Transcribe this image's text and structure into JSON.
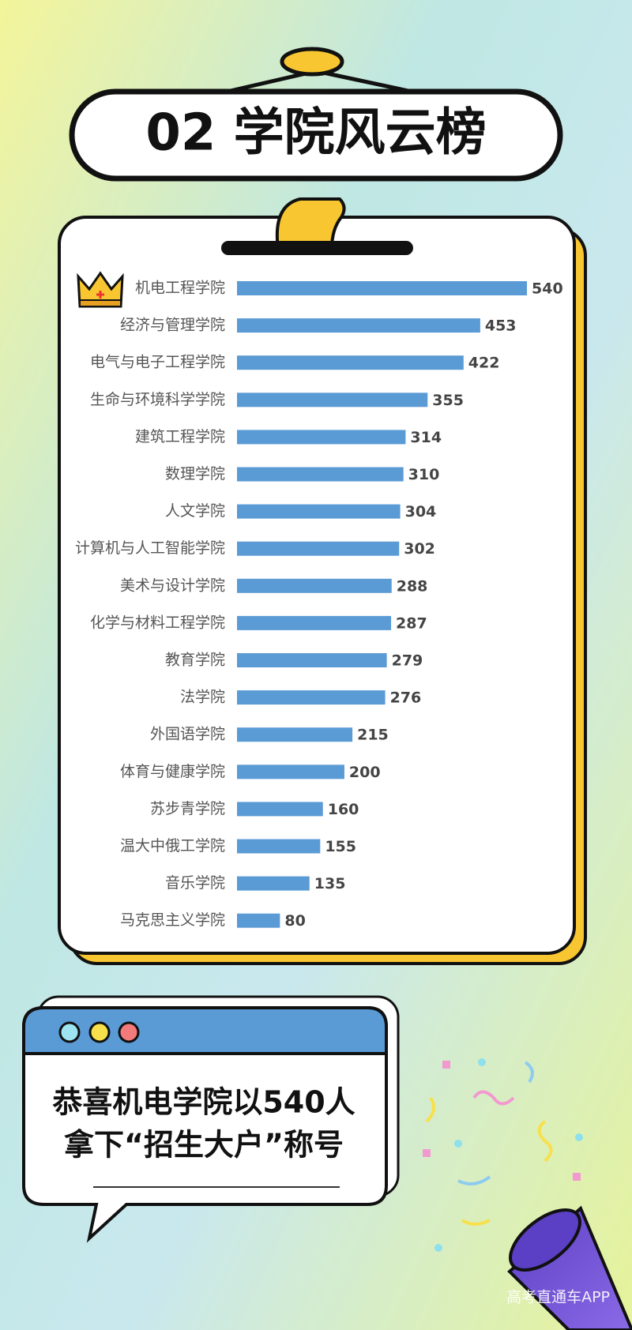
{
  "header": {
    "title": "02 学院风云榜"
  },
  "chart_data": {
    "type": "bar",
    "orientation": "horizontal",
    "color": "#5b9bd5",
    "categories": [
      "机电工程学院",
      "经济与管理学院",
      "电气与电子工程学院",
      "生命与环境科学学院",
      "建筑工程学院",
      "数理学院",
      "人文学院",
      "计算机与人工智能学院",
      "美术与设计学院",
      "化学与材料工程学院",
      "教育学院",
      "法学院",
      "外国语学院",
      "体育与健康学院",
      "苏步青学院",
      "温大中俄工学院",
      "音乐学院",
      "马克思主义学院"
    ],
    "values": [
      540,
      453,
      422,
      355,
      314,
      310,
      304,
      302,
      288,
      287,
      279,
      276,
      215,
      200,
      160,
      155,
      135,
      80
    ]
  },
  "callout": {
    "lines": [
      "恭喜机电学院以540人",
      "拿下“招生大户”称号"
    ]
  },
  "watermark": "高考直通车APP"
}
